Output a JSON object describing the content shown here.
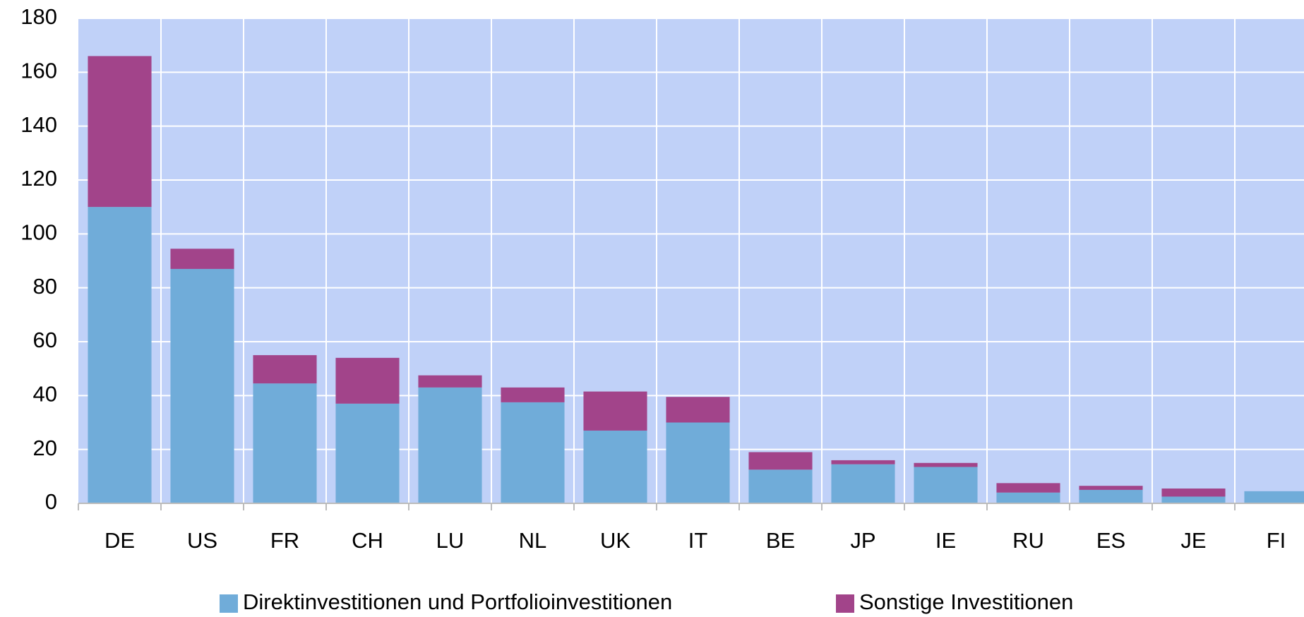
{
  "chart_data": {
    "type": "stacked_bar",
    "categories": [
      "DE",
      "US",
      "FR",
      "CH",
      "LU",
      "NL",
      "UK",
      "IT",
      "BE",
      "JP",
      "IE",
      "RU",
      "ES",
      "JE",
      "FI"
    ],
    "series": [
      {
        "name": "Direktinvestitionen und Portfolioinvestitionen",
        "color": "#70acd9",
        "values": [
          110,
          87,
          44.5,
          37,
          43,
          37.5,
          27,
          30,
          12.5,
          14.5,
          13.5,
          4,
          5,
          2.5,
          4.5
        ]
      },
      {
        "name": "Sonstige Investitionen",
        "color": "#a2448a",
        "values": [
          56,
          7.5,
          10.5,
          17,
          4.5,
          5.5,
          14.5,
          9.5,
          6.5,
          1.5,
          1.5,
          3.5,
          1.5,
          3,
          0
        ]
      }
    ],
    "ylim": [
      0,
      180
    ],
    "yticks": [
      0,
      20,
      40,
      60,
      80,
      100,
      120,
      140,
      160,
      180
    ],
    "grid": true,
    "legend": "bottom",
    "background": "#c0d1f8"
  }
}
